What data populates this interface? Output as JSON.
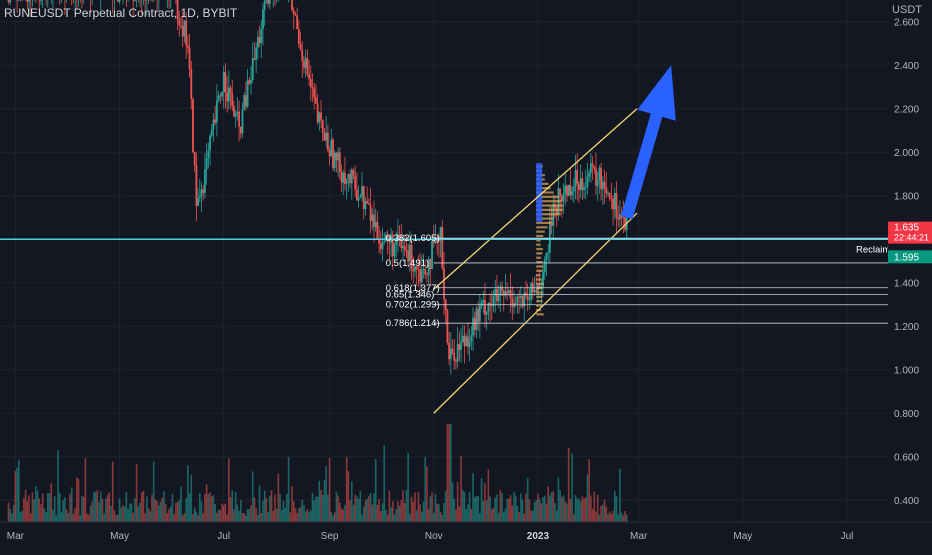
{
  "symbol_title": "RUNEUSDT Perpetual Contract, 1D, BYBIT",
  "currency_label": "USDT",
  "colors": {
    "background": "#131722",
    "up_candle": "#26a69a",
    "down_candle": "#ef5350",
    "channel": "#f5d76e",
    "arrow": "#2962ff",
    "horizontal_line": "#4dd0e1",
    "fib_line": "#d1d4dc",
    "current_price_tag": "#f23645",
    "reclaim_tag": "#089981",
    "volume_profile_up": "#e0a85a",
    "volume_profile_down": "#2962ff"
  },
  "chart_data": {
    "type": "candlestick",
    "y_axis": {
      "ticks": [
        "2.600",
        "2.400",
        "2.200",
        "2.000",
        "1.800",
        "1.600",
        "1.400",
        "1.200",
        "1.000",
        "0.800",
        "0.600",
        "0.400"
      ],
      "tick_values": [
        2.6,
        2.4,
        2.2,
        2.0,
        1.8,
        1.6,
        1.4,
        1.2,
        1.0,
        0.8,
        0.6,
        0.4
      ],
      "range": [
        0.3,
        2.7
      ]
    },
    "x_axis": {
      "ticks": [
        "Mar",
        "May",
        "Jul",
        "Sep",
        "Nov",
        "2023",
        "Mar",
        "May",
        "Jul"
      ],
      "tick_dates": [
        "2022-03-01",
        "2022-05-01",
        "2022-07-01",
        "2022-09-01",
        "2022-11-01",
        "2023-01-01",
        "2023-03-01",
        "2023-05-01",
        "2023-07-01"
      ],
      "range": [
        "2022-02-20",
        "2023-07-25"
      ]
    },
    "price_path": [
      [
        "2022-06-01",
        2.75
      ],
      [
        "2022-06-10",
        2.5
      ],
      [
        "2022-06-15",
        1.75
      ],
      [
        "2022-06-20",
        1.9
      ],
      [
        "2022-07-01",
        2.35
      ],
      [
        "2022-07-10",
        2.1
      ],
      [
        "2022-07-25",
        2.65
      ],
      [
        "2022-08-05",
        2.85
      ],
      [
        "2022-08-15",
        2.5
      ],
      [
        "2022-08-25",
        2.15
      ],
      [
        "2022-09-05",
        1.95
      ],
      [
        "2022-09-20",
        1.8
      ],
      [
        "2022-10-01",
        1.6
      ],
      [
        "2022-10-15",
        1.55
      ],
      [
        "2022-10-25",
        1.45
      ],
      [
        "2022-11-05",
        1.6
      ],
      [
        "2022-11-10",
        1.05
      ],
      [
        "2022-11-20",
        1.15
      ],
      [
        "2022-12-01",
        1.3
      ],
      [
        "2022-12-15",
        1.35
      ],
      [
        "2022-12-25",
        1.3
      ],
      [
        "2023-01-05",
        1.45
      ],
      [
        "2023-01-10",
        1.75
      ],
      [
        "2023-01-20",
        1.85
      ],
      [
        "2023-02-01",
        1.9
      ],
      [
        "2023-02-10",
        1.85
      ],
      [
        "2023-02-22",
        1.65
      ]
    ],
    "volume": {
      "y_ticks_shared": true,
      "max_value": 0.8,
      "note_unit": "same scale as price axis lower region"
    },
    "current_price": {
      "value": 1.635,
      "label": "1.635",
      "countdown": "22:44:21"
    },
    "horizontal_levels": [
      {
        "value": 1.6,
        "label": ""
      },
      {
        "value": 1.595,
        "label": "1.595",
        "tag": "Reclaim"
      }
    ],
    "fibonacci_levels": [
      {
        "ratio": "0.382",
        "value": 1.605,
        "label": "0.382(1.605)"
      },
      {
        "ratio": "0.5",
        "value": 1.491,
        "label": "0.5(1.491)"
      },
      {
        "ratio": "0.618",
        "value": 1.377,
        "label": "0.618(1.377)"
      },
      {
        "ratio": "0.65",
        "value": 1.346,
        "label": "0.65(1.346)"
      },
      {
        "ratio": "0.702",
        "value": 1.299,
        "label": "0.702(1.299)"
      },
      {
        "ratio": "0.786",
        "value": 1.214,
        "label": "0.786(1.214)"
      }
    ],
    "channel": {
      "lower": [
        [
          "2022-11-01",
          0.8
        ],
        [
          "2023-02-28",
          1.72
        ]
      ],
      "upper": [
        [
          "2022-11-01",
          1.37
        ],
        [
          "2023-02-28",
          2.2
        ]
      ]
    },
    "arrow": {
      "from": [
        "2023-02-22",
        1.7
      ],
      "to": [
        "2023-03-20",
        2.4
      ]
    }
  }
}
